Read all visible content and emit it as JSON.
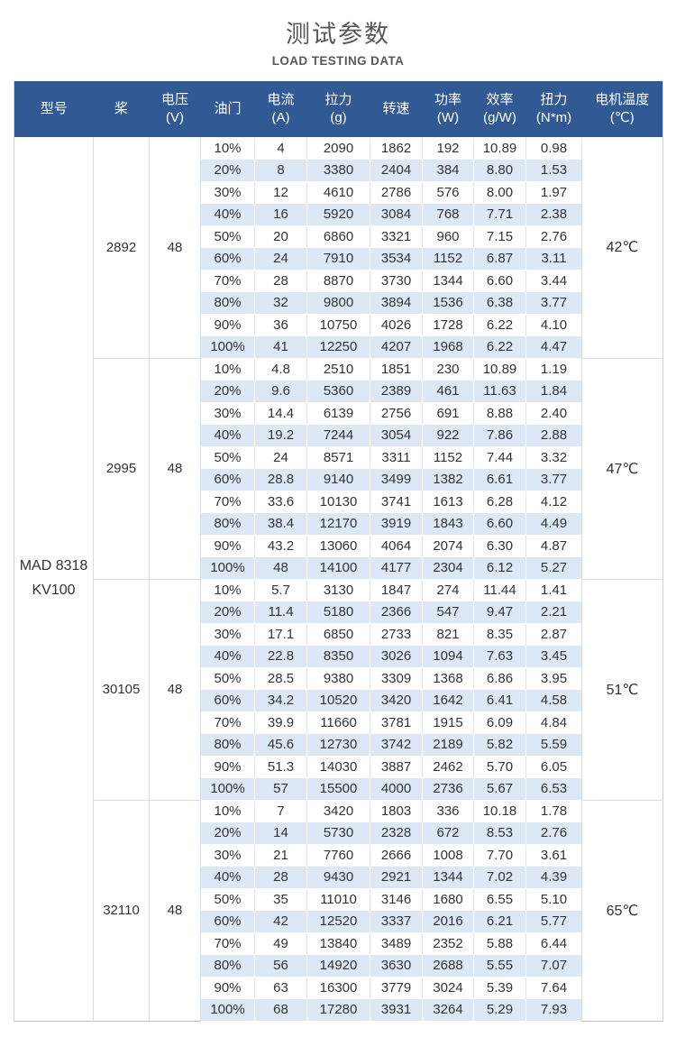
{
  "page": {
    "title": "测试参数",
    "subtitle": "LOAD TESTING DATA"
  },
  "colors": {
    "header_bg": "#315a94",
    "stripe_blue": "#dce8f5",
    "title_gray": "#595959"
  },
  "table": {
    "columns": [
      {
        "label": "型号",
        "sub": ""
      },
      {
        "label": "桨",
        "sub": ""
      },
      {
        "label": "电压",
        "sub": "(V)"
      },
      {
        "label": "油门",
        "sub": ""
      },
      {
        "label": "电流",
        "sub": "(A)"
      },
      {
        "label": "拉力",
        "sub": "(g)"
      },
      {
        "label": "转速",
        "sub": ""
      },
      {
        "label": "功率",
        "sub": "(W)"
      },
      {
        "label": "效率",
        "sub": "(g/W)"
      },
      {
        "label": "扭力",
        "sub": "(N*m)"
      },
      {
        "label": "电机温度",
        "sub": "(℃)"
      }
    ],
    "model_lines": [
      "MAD 8318",
      "KV100"
    ],
    "groups": [
      {
        "prop": "2892",
        "voltage": "48",
        "temp": "42℃",
        "rows": [
          [
            "10%",
            "4",
            "2090",
            "1862",
            "192",
            "10.89",
            "0.98"
          ],
          [
            "20%",
            "8",
            "3380",
            "2404",
            "384",
            "8.80",
            "1.53"
          ],
          [
            "30%",
            "12",
            "4610",
            "2786",
            "576",
            "8.00",
            "1.97"
          ],
          [
            "40%",
            "16",
            "5920",
            "3084",
            "768",
            "7.71",
            "2.38"
          ],
          [
            "50%",
            "20",
            "6860",
            "3321",
            "960",
            "7.15",
            "2.76"
          ],
          [
            "60%",
            "24",
            "7910",
            "3534",
            "1152",
            "6.87",
            "3.11"
          ],
          [
            "70%",
            "28",
            "8870",
            "3730",
            "1344",
            "6.60",
            "3.44"
          ],
          [
            "80%",
            "32",
            "9800",
            "3894",
            "1536",
            "6.38",
            "3.77"
          ],
          [
            "90%",
            "36",
            "10750",
            "4026",
            "1728",
            "6.22",
            "4.10"
          ],
          [
            "100%",
            "41",
            "12250",
            "4207",
            "1968",
            "6.22",
            "4.47"
          ]
        ]
      },
      {
        "prop": "2995",
        "voltage": "48",
        "temp": "47℃",
        "rows": [
          [
            "10%",
            "4.8",
            "2510",
            "1851",
            "230",
            "10.89",
            "1.19"
          ],
          [
            "20%",
            "9.6",
            "5360",
            "2389",
            "461",
            "11.63",
            "1.84"
          ],
          [
            "30%",
            "14.4",
            "6139",
            "2756",
            "691",
            "8.88",
            "2.40"
          ],
          [
            "40%",
            "19.2",
            "7244",
            "3054",
            "922",
            "7.86",
            "2.88"
          ],
          [
            "50%",
            "24",
            "8571",
            "3311",
            "1152",
            "7.44",
            "3.32"
          ],
          [
            "60%",
            "28.8",
            "9140",
            "3499",
            "1382",
            "6.61",
            "3.77"
          ],
          [
            "70%",
            "33.6",
            "10130",
            "3741",
            "1613",
            "6.28",
            "4.12"
          ],
          [
            "80%",
            "38.4",
            "12170",
            "3919",
            "1843",
            "6.60",
            "4.49"
          ],
          [
            "90%",
            "43.2",
            "13060",
            "4064",
            "2074",
            "6.30",
            "4.87"
          ],
          [
            "100%",
            "48",
            "14100",
            "4177",
            "2304",
            "6.12",
            "5.27"
          ]
        ]
      },
      {
        "prop": "30105",
        "voltage": "48",
        "temp": "51℃",
        "rows": [
          [
            "10%",
            "5.7",
            "3130",
            "1847",
            "274",
            "11.44",
            "1.41"
          ],
          [
            "20%",
            "11.4",
            "5180",
            "2366",
            "547",
            "9.47",
            "2.21"
          ],
          [
            "30%",
            "17.1",
            "6850",
            "2733",
            "821",
            "8.35",
            "2.87"
          ],
          [
            "40%",
            "22.8",
            "8350",
            "3026",
            "1094",
            "7.63",
            "3.45"
          ],
          [
            "50%",
            "28.5",
            "9380",
            "3309",
            "1368",
            "6.86",
            "3.95"
          ],
          [
            "60%",
            "34.2",
            "10520",
            "3420",
            "1642",
            "6.41",
            "4.58"
          ],
          [
            "70%",
            "39.9",
            "11660",
            "3781",
            "1915",
            "6.09",
            "4.84"
          ],
          [
            "80%",
            "45.6",
            "12730",
            "3742",
            "2189",
            "5.82",
            "5.59"
          ],
          [
            "90%",
            "51.3",
            "14030",
            "3887",
            "2462",
            "5.70",
            "6.05"
          ],
          [
            "100%",
            "57",
            "15500",
            "4000",
            "2736",
            "5.67",
            "6.53"
          ]
        ]
      },
      {
        "prop": "32110",
        "voltage": "48",
        "temp": "65℃",
        "rows": [
          [
            "10%",
            "7",
            "3420",
            "1803",
            "336",
            "10.18",
            "1.78"
          ],
          [
            "20%",
            "14",
            "5730",
            "2328",
            "672",
            "8.53",
            "2.76"
          ],
          [
            "30%",
            "21",
            "7760",
            "2666",
            "1008",
            "7.70",
            "3.61"
          ],
          [
            "40%",
            "28",
            "9430",
            "2921",
            "1344",
            "7.02",
            "4.39"
          ],
          [
            "50%",
            "35",
            "11010",
            "3146",
            "1680",
            "6.55",
            "5.10"
          ],
          [
            "60%",
            "42",
            "12520",
            "3337",
            "2016",
            "6.21",
            "5.77"
          ],
          [
            "70%",
            "49",
            "13840",
            "3489",
            "2352",
            "5.88",
            "6.44"
          ],
          [
            "80%",
            "56",
            "14920",
            "3630",
            "2688",
            "5.55",
            "7.07"
          ],
          [
            "90%",
            "63",
            "16300",
            "3779",
            "3024",
            "5.39",
            "7.64"
          ],
          [
            "100%",
            "68",
            "17280",
            "3931",
            "3264",
            "5.29",
            "7.93"
          ]
        ]
      }
    ]
  }
}
